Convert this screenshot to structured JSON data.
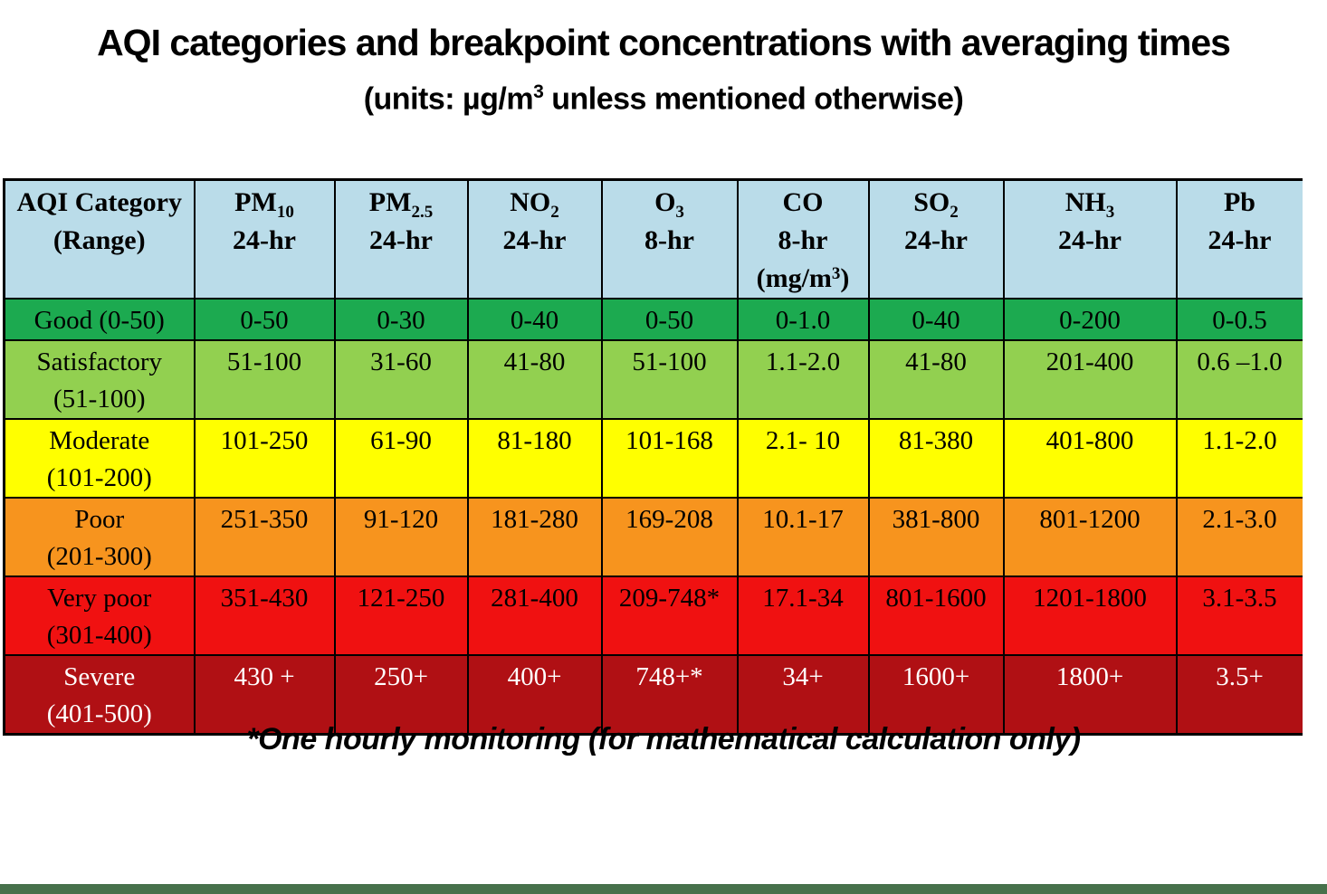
{
  "colors": {
    "page_bg": "#FFFFFF",
    "header_bg": "#BADCE9",
    "bottom_strip": "#47714B",
    "text_default": "#000000"
  },
  "chart_data": {
    "type": "table",
    "title": "AQI categories and breakpoint concentrations with averaging times",
    "subtitle_text": "(units: µg/m3 unless mentioned otherwise)",
    "subtitle_parts": {
      "prefix": "(units: µg/m",
      "sup": "3",
      "suffix": " unless mentioned otherwise)"
    },
    "footnote": "*One hourly monitoring (for mathematical calculation only)",
    "columns": [
      {
        "label_line1": "AQI Category",
        "label_line2": "(Range)"
      },
      {
        "pollutant": "PM10",
        "symbol": "PM",
        "sub": "10",
        "avg": "24-hr"
      },
      {
        "pollutant": "PM2.5",
        "symbol": "PM",
        "sub": "2.5",
        "avg": "24-hr"
      },
      {
        "pollutant": "NO2",
        "symbol": "NO",
        "sub": "2",
        "avg": "24-hr"
      },
      {
        "pollutant": "O3",
        "symbol": "O",
        "sub": "3",
        "avg": "8-hr"
      },
      {
        "pollutant": "CO",
        "symbol": "CO",
        "sub": "",
        "avg": "8-hr",
        "unit_note": {
          "prefix": "(mg/m",
          "sup": "3",
          "suffix": ")"
        }
      },
      {
        "pollutant": "SO2",
        "symbol": "SO",
        "sub": "2",
        "avg": "24-hr"
      },
      {
        "pollutant": "NH3",
        "symbol": "NH",
        "sub": "3",
        "avg": "24-hr"
      },
      {
        "pollutant": "Pb",
        "symbol": "Pb",
        "sub": "",
        "avg": "24-hr"
      }
    ],
    "rows": [
      {
        "category": "Good",
        "aqi_range": "0-50",
        "label_lines": [
          "Good (0-50)"
        ],
        "bg": "#1CAA50",
        "text": "#000000",
        "values": [
          "0-50",
          "0-30",
          "0-40",
          "0-50",
          "0-1.0",
          "0-40",
          "0-200",
          "0-0.5"
        ]
      },
      {
        "category": "Satisfactory",
        "aqi_range": "51-100",
        "label_lines": [
          "Satisfactory",
          "(51-100)"
        ],
        "bg": "#92D050",
        "text": "#000000",
        "values": [
          "51-100",
          "31-60",
          "41-80",
          "51-100",
          "1.1-2.0",
          "41-80",
          "201-400",
          "0.6 –1.0"
        ]
      },
      {
        "category": "Moderate",
        "aqi_range": "101-200",
        "label_lines": [
          "Moderate",
          "(101-200)"
        ],
        "bg": "#FFFF00",
        "text": "#000000",
        "values": [
          "101-250",
          "61-90",
          "81-180",
          "101-168",
          "2.1- 10",
          "81-380",
          "401-800",
          "1.1-2.0"
        ]
      },
      {
        "category": "Poor",
        "aqi_range": "201-300",
        "label_lines": [
          "Poor",
          "(201-300)"
        ],
        "bg": "#F7941E",
        "text": "#000000",
        "values": [
          "251-350",
          "91-120",
          "181-280",
          "169-208",
          "10.1-17",
          "381-800",
          "801-1200",
          "2.1-3.0"
        ]
      },
      {
        "category": "Very poor",
        "aqi_range": "301-400",
        "label_lines": [
          "Very poor",
          "(301-400)"
        ],
        "bg": "#F01111",
        "text": "#000000",
        "values": [
          "351-430",
          "121-250",
          "281-400",
          "209-748*",
          "17.1-34",
          "801-1600",
          "1201-1800",
          "3.1-3.5"
        ]
      },
      {
        "category": "Severe",
        "aqi_range": "401-500",
        "label_lines": [
          "Severe",
          "(401-500)"
        ],
        "bg": "#B01014",
        "text": "#FFFFFF",
        "values": [
          "430 +",
          "250+",
          "400+",
          "748+*",
          "34+",
          "1600+",
          "1800+",
          "3.5+"
        ]
      }
    ]
  }
}
